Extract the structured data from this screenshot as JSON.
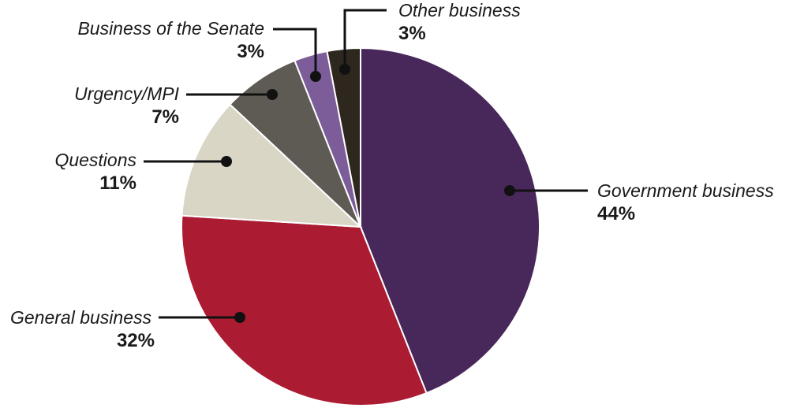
{
  "chart_data": {
    "type": "pie",
    "title": "",
    "slices": [
      {
        "label": "Government business",
        "value": 44,
        "value_label": "44%",
        "color": "#48275a"
      },
      {
        "label": "General business",
        "value": 32,
        "value_label": "32%",
        "color": "#ab1c33"
      },
      {
        "label": "Questions",
        "value": 11,
        "value_label": "11%",
        "color": "#d9d6c6"
      },
      {
        "label": "Urgency/MPI",
        "value": 7,
        "value_label": "7%",
        "color": "#5e5a54"
      },
      {
        "label": "Business of the Senate",
        "value": 3,
        "value_label": "3%",
        "color": "#7c5d9a"
      },
      {
        "label": "Other business",
        "value": 3,
        "value_label": "3%",
        "color": "#2d271e"
      }
    ],
    "start": "12 o'clock",
    "direction": "clockwise",
    "legend": "none",
    "labels": "outside with leader lines"
  }
}
